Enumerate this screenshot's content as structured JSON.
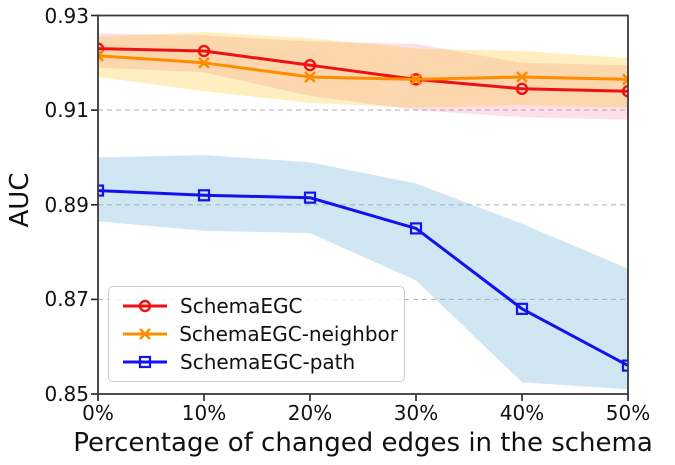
{
  "chart_data": {
    "type": "line",
    "title": "",
    "xlabel": "Percentage of changed edges in the schema",
    "ylabel": "AUC",
    "x_values": [
      0,
      10,
      20,
      30,
      40,
      50
    ],
    "x_tick_labels": [
      "0%",
      "10%",
      "20%",
      "30%",
      "40%",
      "50%"
    ],
    "xlim": [
      0,
      50
    ],
    "ylim": [
      0.85,
      0.93
    ],
    "y_ticks": [
      0.93,
      0.91,
      0.89,
      0.87,
      0.85
    ],
    "y_tick_labels": [
      "0.93",
      "0.91",
      "0.89",
      "0.87",
      "0.85"
    ],
    "gridlines": [
      0.91,
      0.89,
      0.87
    ],
    "grid_color": "#b8b8b8",
    "spine_color": "#3a3a3a",
    "legend_position": "lower left",
    "series": [
      {
        "name": "SchemaEGC",
        "color": "#ee1111",
        "marker": "circle",
        "values": [
          0.923,
          0.9225,
          0.9195,
          0.9165,
          0.9145,
          0.914
        ],
        "band_upper": [
          0.9262,
          0.9258,
          0.9245,
          0.924,
          0.92,
          0.9195
        ],
        "band_lower": [
          0.919,
          0.918,
          0.913,
          0.91,
          0.9085,
          0.908
        ],
        "band_color": "rgba(240,80,120,0.18)"
      },
      {
        "name": "SchemaEGC-neighbor",
        "color": "#ff8c00",
        "marker": "x",
        "values": [
          0.9215,
          0.92,
          0.917,
          0.9165,
          0.917,
          0.9165
        ],
        "band_upper": [
          0.9255,
          0.9265,
          0.9252,
          0.923,
          0.9225,
          0.921
        ],
        "band_lower": [
          0.917,
          0.914,
          0.9115,
          0.9105,
          0.911,
          0.9105
        ],
        "band_color": "rgba(250,195,30,0.28)"
      },
      {
        "name": "SchemaEGC-path",
        "color": "#1212ee",
        "marker": "square",
        "values": [
          0.893,
          0.892,
          0.8915,
          0.885,
          0.868,
          0.856
        ],
        "band_upper": [
          0.9,
          0.9005,
          0.899,
          0.8945,
          0.886,
          0.8765
        ],
        "band_lower": [
          0.8865,
          0.8845,
          0.884,
          0.874,
          0.8525,
          0.851
        ],
        "band_color": "rgba(120,185,220,0.35)"
      }
    ]
  }
}
